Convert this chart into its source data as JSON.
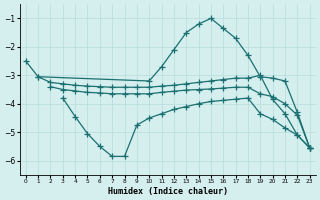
{
  "line1_x": [
    0,
    1,
    10,
    11,
    12,
    13,
    14,
    15,
    16,
    17,
    18,
    19,
    20,
    21,
    22,
    23
  ],
  "line1_y": [
    -2.5,
    -3.05,
    -3.2,
    -2.7,
    -2.1,
    -1.5,
    -1.2,
    -1.0,
    -1.35,
    -1.7,
    -2.3,
    -3.05,
    -3.1,
    -3.2,
    -4.3,
    -5.55
  ],
  "line2_x": [
    1,
    2,
    3,
    4,
    5,
    6,
    7,
    8,
    9,
    10,
    11,
    12,
    13,
    14,
    15,
    16,
    17,
    18,
    19,
    20,
    21,
    22,
    23
  ],
  "line2_y": [
    -3.05,
    -3.25,
    -3.3,
    -3.35,
    -3.38,
    -3.4,
    -3.42,
    -3.42,
    -3.42,
    -3.42,
    -3.38,
    -3.35,
    -3.3,
    -3.25,
    -3.2,
    -3.15,
    -3.1,
    -3.1,
    -3.0,
    -3.85,
    -4.35,
    -5.1,
    -5.55
  ],
  "line3_x": [
    2,
    3,
    4,
    5,
    6,
    7,
    8,
    9,
    10,
    11,
    12,
    13,
    14,
    15,
    16,
    17,
    18,
    19,
    20,
    21,
    22,
    23
  ],
  "line3_y": [
    -3.4,
    -3.5,
    -3.55,
    -3.6,
    -3.62,
    -3.65,
    -3.65,
    -3.65,
    -3.65,
    -3.6,
    -3.56,
    -3.52,
    -3.5,
    -3.48,
    -3.45,
    -3.42,
    -3.42,
    -3.65,
    -3.75,
    -4.0,
    -4.4,
    -5.55
  ],
  "line4_x": [
    3,
    4,
    5,
    6,
    7,
    8,
    9,
    10,
    11,
    12,
    13,
    14,
    15,
    16,
    17,
    18,
    19,
    20,
    21,
    22,
    23
  ],
  "line4_y": [
    -3.8,
    -4.45,
    -5.05,
    -5.5,
    -5.85,
    -5.85,
    -4.75,
    -4.5,
    -4.35,
    -4.2,
    -4.1,
    -4.0,
    -3.92,
    -3.88,
    -3.84,
    -3.8,
    -4.35,
    -4.55,
    -4.85,
    -5.1,
    -5.55
  ],
  "line_color": "#1a7070",
  "bg_color": "#d5eeee",
  "grid_major_color": "#b8dcdc",
  "grid_minor_color": "#cce8e8",
  "xlabel": "Humidex (Indice chaleur)",
  "ylim": [
    -6.5,
    -0.5
  ],
  "xlim": [
    -0.5,
    23.5
  ],
  "yticks": [
    -6,
    -5,
    -4,
    -3,
    -2,
    -1
  ],
  "xticks": [
    0,
    1,
    2,
    3,
    4,
    5,
    6,
    7,
    8,
    9,
    10,
    11,
    12,
    13,
    14,
    15,
    16,
    17,
    18,
    19,
    20,
    21,
    22,
    23
  ],
  "marker": "+",
  "markersize": 4,
  "linewidth": 0.9
}
